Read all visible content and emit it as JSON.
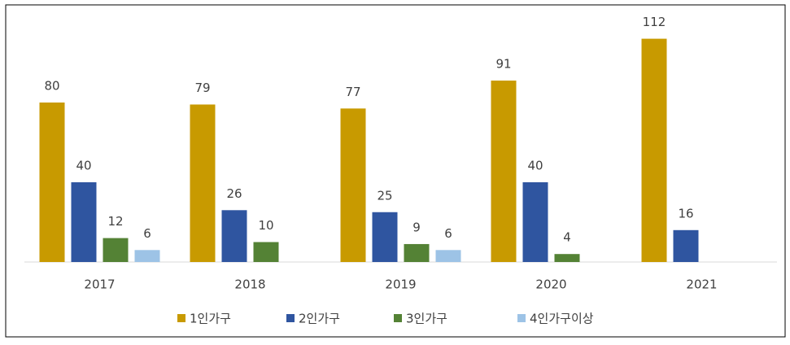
{
  "chart_data": {
    "type": "bar",
    "categories": [
      "2017",
      "2018",
      "2019",
      "2020",
      "2021"
    ],
    "series": [
      {
        "name": "1인가구",
        "color": "#c89a00",
        "values": [
          80,
          79,
          77,
          91,
          112
        ]
      },
      {
        "name": "2인가구",
        "color": "#2f55a0",
        "values": [
          40,
          26,
          25,
          40,
          16
        ]
      },
      {
        "name": "3인가구",
        "color": "#548235",
        "values": [
          12,
          10,
          9,
          4,
          null
        ]
      },
      {
        "name": "4인가구이상",
        "color": "#9dc3e6",
        "values": [
          6,
          null,
          6,
          null,
          null
        ]
      }
    ],
    "ylim": [
      0,
      120
    ],
    "legend": "bottom"
  }
}
